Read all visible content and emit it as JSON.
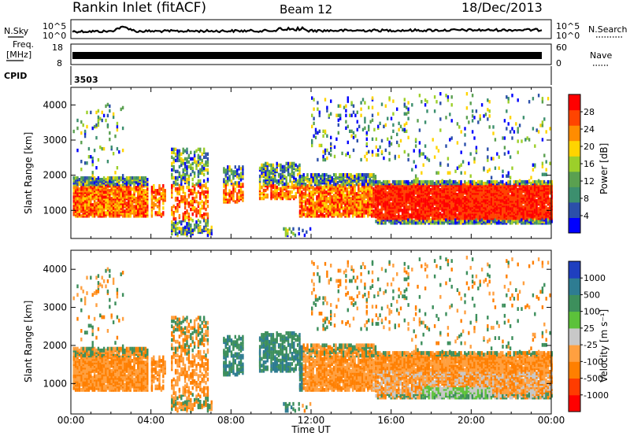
{
  "header": {
    "station": "Rankin Inlet (fitACF)",
    "beam": "Beam 12",
    "date": "18/Dec/2013"
  },
  "panels": {
    "nsky_label": "N.Sky",
    "nsearch_label": "N.Search",
    "nsky_ticks": [
      "10^5",
      "10^0"
    ],
    "nsearch_ticks": [
      "10^5",
      "10^0"
    ],
    "freq_label": "Freq.",
    "freq_unit": "[MHz]",
    "freq_ticks": [
      "18",
      "8"
    ],
    "nave_label": "Nave",
    "nave_ticks": [
      "60",
      "0"
    ],
    "cpid_label": "CPID",
    "cpid_value": "3503"
  },
  "colors": {
    "power_scale": [
      "#0000ff",
      "#2b4faa",
      "#3c8f6e",
      "#5aa050",
      "#9ccf2a",
      "#ffd400",
      "#ff8c00",
      "#ff4400",
      "#ff0000"
    ],
    "velocity_scale": [
      "#1f3fbf",
      "#2e7c92",
      "#3d8f5c",
      "#5cc23a",
      "#c8c8c8",
      "#ffa040",
      "#ff7f00",
      "#ff3c00",
      "#ff0000"
    ]
  },
  "chart_data": [
    {
      "type": "heatmap",
      "name": "power",
      "ylabel": "Slant Range [km]",
      "xlabel": "",
      "x_ticks": [
        "00:00",
        "04:00",
        "08:00",
        "12:00",
        "16:00",
        "20:00",
        "00:00"
      ],
      "y_ticks": [
        1000,
        2000,
        3000,
        4000
      ],
      "ylim": [
        200,
        4500
      ],
      "xlim_hours": [
        0,
        24
      ],
      "colorbar": {
        "label": "Power [dB]",
        "ticks": [
          4,
          8,
          12,
          16,
          20,
          24,
          28
        ],
        "range": [
          0,
          32
        ]
      }
    },
    {
      "type": "heatmap",
      "name": "velocity",
      "ylabel": "Slant Range [km]",
      "xlabel": "Time UT",
      "x_ticks": [
        "00:00",
        "04:00",
        "08:00",
        "12:00",
        "16:00",
        "20:00",
        "00:00"
      ],
      "y_ticks": [
        1000,
        2000,
        3000,
        4000
      ],
      "ylim": [
        200,
        4500
      ],
      "xlim_hours": [
        0,
        24
      ],
      "colorbar": {
        "label": "Velocity [m s⁻¹]",
        "ticks": [
          "1000",
          "500",
          "100",
          "25",
          "-25",
          "-100",
          "-500",
          "-1000"
        ]
      }
    }
  ]
}
